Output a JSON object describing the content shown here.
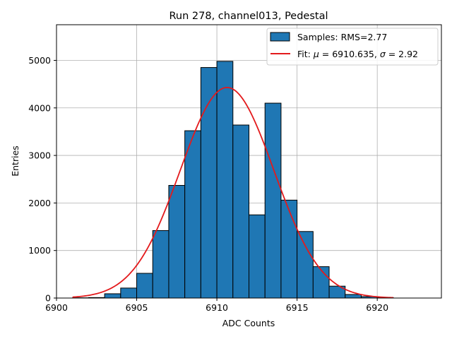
{
  "chart_data": {
    "type": "bar",
    "title": "Run 278, channel013, Pedestal",
    "xlabel": "ADC Counts",
    "ylabel": "Entries",
    "xlim": [
      6900,
      6924
    ],
    "ylim": [
      0,
      5750
    ],
    "xticks": [
      6900,
      6905,
      6910,
      6915,
      6920
    ],
    "yticks": [
      0,
      1000,
      2000,
      3000,
      4000,
      5000
    ],
    "grid": true,
    "legend_position": "top-right",
    "histogram": {
      "name": "Samples: RMS=2.77",
      "bin_width": 1,
      "bins": [
        6901,
        6902,
        6903,
        6904,
        6905,
        6906,
        6907,
        6908,
        6909,
        6910,
        6911,
        6912,
        6913,
        6914,
        6915,
        6916,
        6917,
        6918,
        6919,
        6920
      ],
      "values": [
        5,
        10,
        90,
        210,
        520,
        1420,
        2370,
        3520,
        4850,
        4980,
        3640,
        1750,
        4100,
        2060,
        1400,
        660,
        250,
        75,
        30,
        10
      ],
      "fill_color": "#1f77b4",
      "edge_color": "#000000"
    },
    "fit": {
      "name": "Fit: μ = 6910.635, σ = 2.92",
      "label_prefix": "Fit: ",
      "mu_symbol": "μ",
      "mu_text": " = 6910.635, ",
      "sigma_symbol": "σ",
      "sigma_text": " = 2.92",
      "mu": 6910.635,
      "sigma": 2.92,
      "amplitude": 4430,
      "x_range": [
        6901,
        6921
      ],
      "color": "#e31a1c"
    }
  }
}
